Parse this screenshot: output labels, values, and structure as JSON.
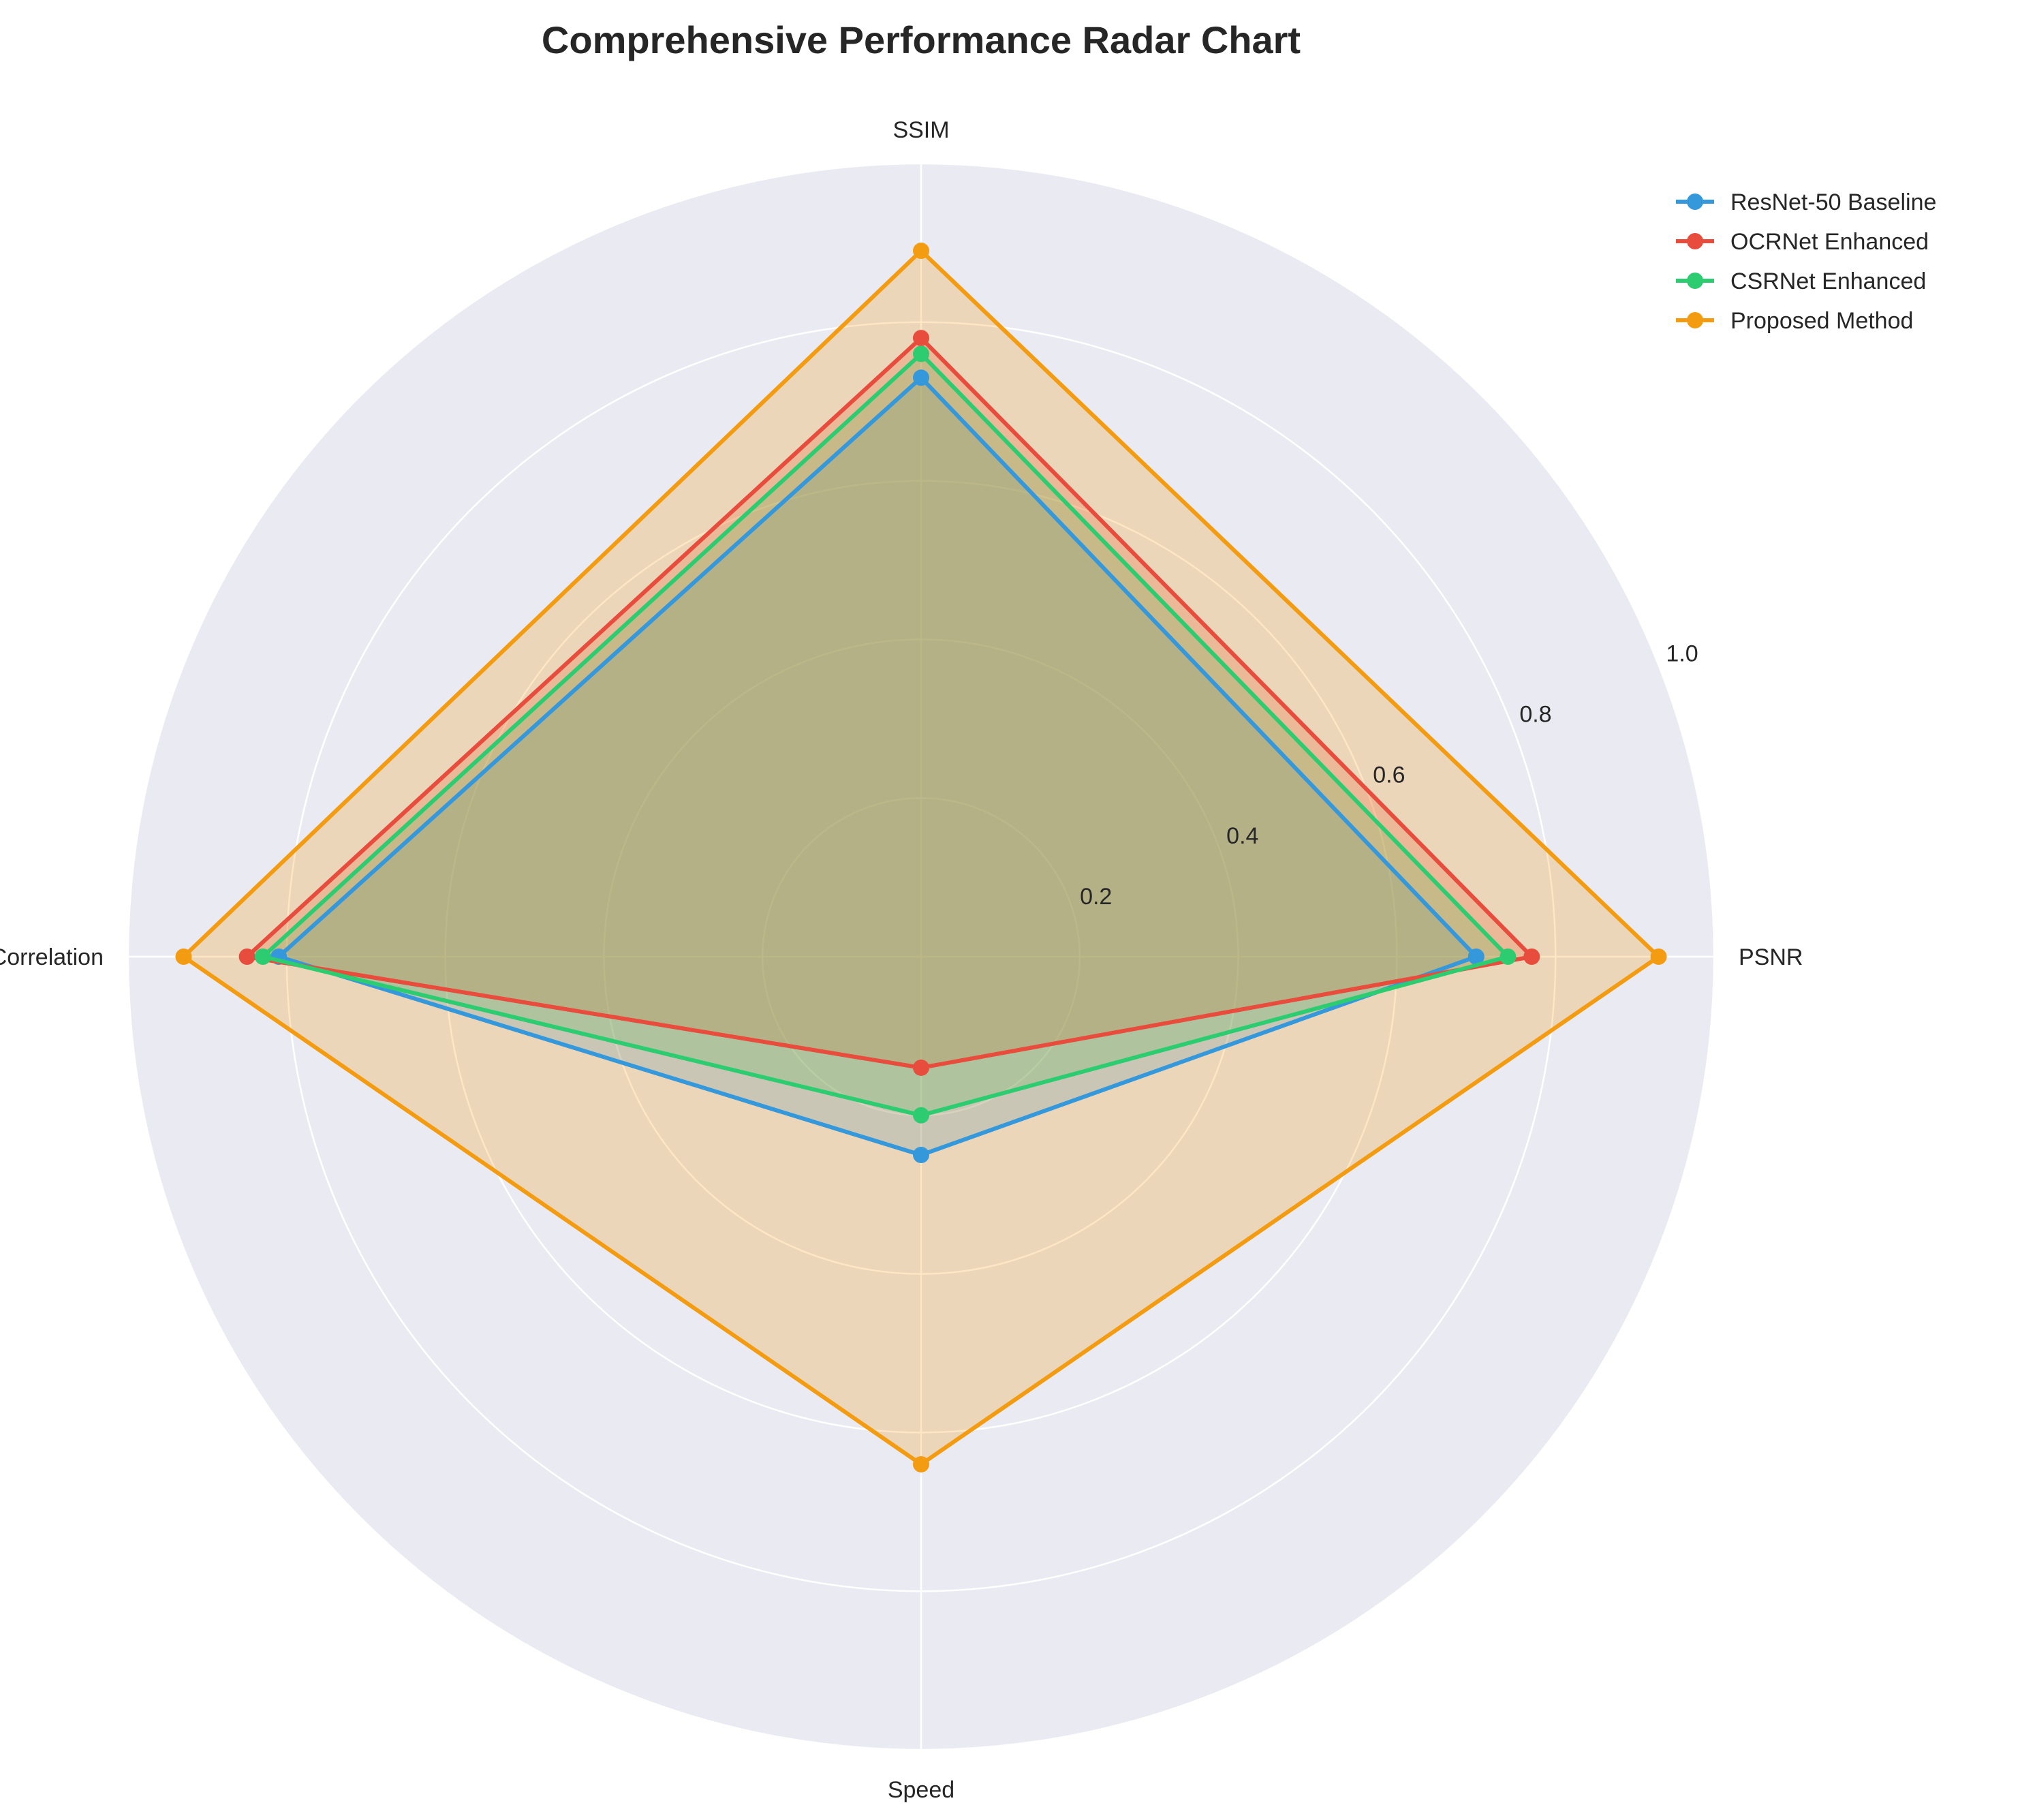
{
  "chart_data": {
    "type": "radar",
    "title": "Comprehensive Performance Radar Chart",
    "axes": [
      "PSNR",
      "SSIM",
      "Correlation",
      "Speed"
    ],
    "rlim": [
      0,
      1.0
    ],
    "rticks": [
      "0.2",
      "0.4",
      "0.6",
      "0.8",
      "1.0"
    ],
    "grid": true,
    "legend": "top-right",
    "series": [
      {
        "name": "ResNet-50 Baseline",
        "color": "#3498db",
        "values": [
          0.7,
          0.73,
          0.81,
          0.25
        ]
      },
      {
        "name": "OCRNet Enhanced",
        "color": "#e74c3c",
        "values": [
          0.77,
          0.78,
          0.85,
          0.14
        ]
      },
      {
        "name": "CSRNet Enhanced",
        "color": "#2ecc71",
        "values": [
          0.74,
          0.76,
          0.83,
          0.2
        ]
      },
      {
        "name": "Proposed Method",
        "color": "#f39c12",
        "values": [
          0.93,
          0.89,
          0.93,
          0.64
        ]
      }
    ],
    "background_color": "#eaeaf2",
    "grid_color": "#ffffff",
    "fill_opacity": 0.25
  }
}
